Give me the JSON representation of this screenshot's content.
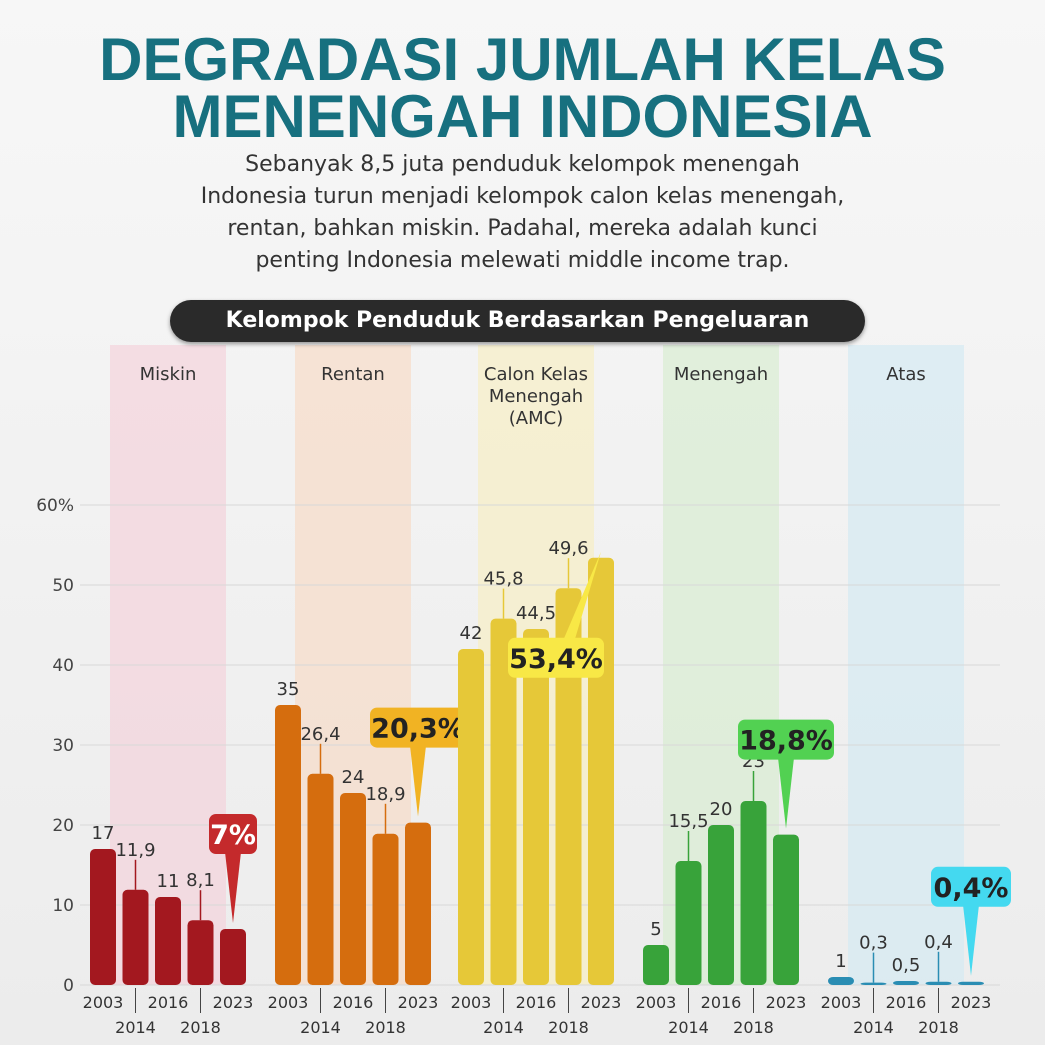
{
  "chart_data": {
    "type": "bar",
    "title": [
      "DEGRADASI JUMLAH KELAS",
      "MENENGAH INDONESIA"
    ],
    "subtitle": [
      "Sebanyak 8,5 juta penduduk kelompok menengah",
      "Indonesia turun menjadi kelompok calon kelas menengah,",
      "rentan, bahkan miskin. Padahal, mereka adalah kunci",
      "penting Indonesia melewati middle income trap."
    ],
    "section_title": "Kelompok Penduduk Berdasarkan Pengeluaran",
    "categories": [
      "2003",
      "2014",
      "2016",
      "2018",
      "2023"
    ],
    "ylim": [
      0,
      60
    ],
    "yticks": [
      0,
      10,
      20,
      30,
      40,
      50,
      {
        "value": 60,
        "label": "60%"
      }
    ],
    "series": [
      {
        "name": "Miskin",
        "color": "#a3181f",
        "callout_color": "#c42a2c",
        "panel_color": "#f3d3dc",
        "values": [
          17,
          11.9,
          11,
          8.1,
          7
        ],
        "value_labels": [
          "17",
          "11,9",
          "11",
          "8,1",
          "7%"
        ]
      },
      {
        "name": "Rentan",
        "color": "#d56d0e",
        "callout_color": "#f1b323",
        "panel_color": "#f6dcc8",
        "values": [
          35,
          26.4,
          24,
          18.9,
          20.3
        ],
        "value_labels": [
          "35",
          "26,4",
          "24",
          "18,9",
          "20,3%"
        ]
      },
      {
        "name": "Calon Kelas Menengah (AMC)",
        "color": "#e6c838",
        "callout_color": "#f8e846",
        "panel_color": "#f7eec4",
        "values": [
          42,
          45.8,
          44.5,
          49.6,
          53.4
        ],
        "value_labels": [
          "42",
          "45,8",
          "44,5",
          "49,6",
          "53,4%"
        ]
      },
      {
        "name": "Menengah",
        "color": "#38a33a",
        "callout_color": "#52d152",
        "panel_color": "#d8ecd2",
        "values": [
          5,
          15.5,
          20,
          23,
          18.8
        ],
        "value_labels": [
          "5",
          "15,5",
          "20",
          "23",
          "18,8%"
        ]
      },
      {
        "name": "Atas",
        "color": "#2a8db3",
        "callout_color": "#44d9f0",
        "panel_color": "#d4e9f2",
        "values": [
          1,
          0.3,
          0.5,
          0.4,
          0.4
        ],
        "value_labels": [
          "1",
          "0,3",
          "0,5",
          "0,4",
          "0,4%"
        ]
      }
    ]
  }
}
